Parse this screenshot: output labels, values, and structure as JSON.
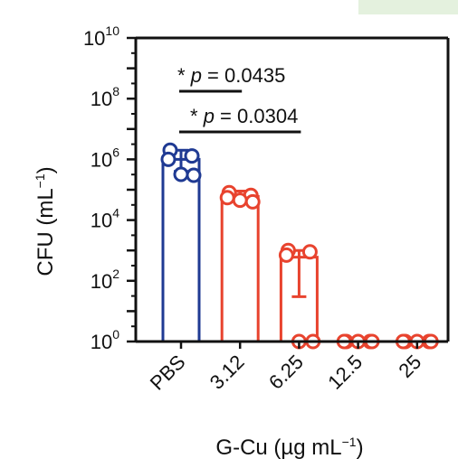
{
  "chart_data": {
    "type": "bar",
    "scale": "log",
    "ylabel_base": "CFU (mL",
    "ylabel_sup": "−1",
    "ylabel_close": ")",
    "xlabel_base": "G-Cu (µg mL",
    "xlabel_sup": "−1",
    "xlabel_close": ")",
    "categories": [
      "PBS",
      "3.12",
      "6.25",
      "12.5",
      "25"
    ],
    "values": [
      1000000,
      60000,
      600,
      1,
      1
    ],
    "error_low": [
      400000,
      40000,
      30,
      1,
      1
    ],
    "error_high": [
      2000000,
      90000,
      1000,
      1,
      1
    ],
    "points": [
      [
        2000000,
        1300000,
        1000000,
        320000,
        300000
      ],
      [
        80000,
        65000,
        55000,
        45000,
        40000
      ],
      [
        1000,
        900,
        700,
        1,
        1
      ],
      [
        1,
        1,
        1,
        1,
        1
      ],
      [
        1,
        1,
        1,
        1,
        1
      ]
    ],
    "colors": [
      "#1f3a93",
      "#e8432e",
      "#e8432e",
      "#e8432e",
      "#e8432e"
    ],
    "ylim": [
      1,
      10000000000
    ],
    "yticks": [
      {
        "base": "10",
        "exp": "10",
        "value": 10000000000
      },
      {
        "base": "10",
        "exp": "8",
        "value": 100000000
      },
      {
        "base": "10",
        "exp": "6",
        "value": 1000000
      },
      {
        "base": "10",
        "exp": "4",
        "value": 10000
      },
      {
        "base": "10",
        "exp": "2",
        "value": 100
      },
      {
        "base": "10",
        "exp": "0",
        "value": 1
      }
    ],
    "annotations": [
      {
        "star": "*",
        "p": "p",
        "rest": " = 0.0435",
        "from": 0,
        "to": 1
      },
      {
        "star": "*",
        "p": "p",
        "rest": " = 0.0304",
        "from": 0,
        "to": 2
      }
    ]
  }
}
